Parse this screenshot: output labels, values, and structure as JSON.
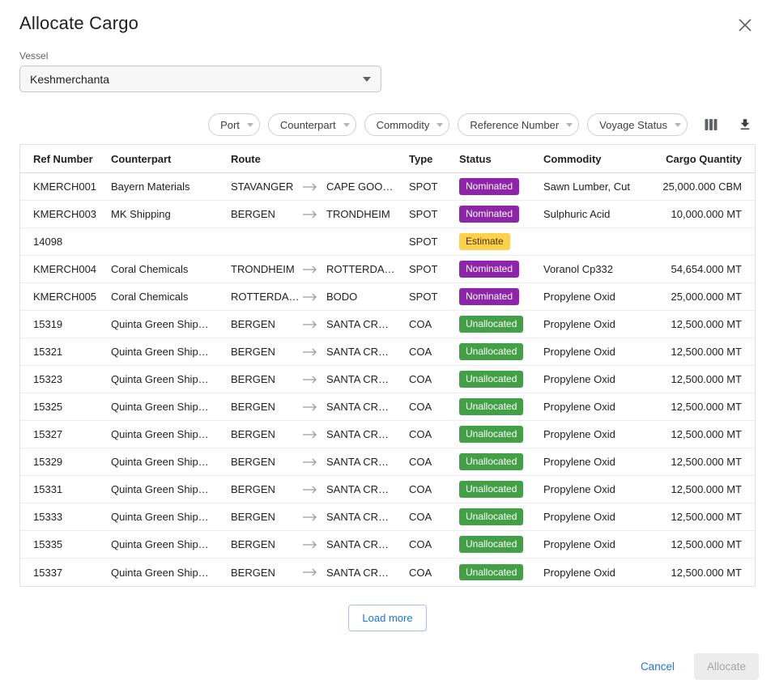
{
  "dialog": {
    "title": "Allocate Cargo"
  },
  "vessel": {
    "label": "Vessel",
    "value": "Keshmerchanta"
  },
  "filters": {
    "chips": [
      "Port",
      "Counterpart",
      "Commodity",
      "Reference Number",
      "Voyage Status"
    ]
  },
  "table": {
    "headers": {
      "ref": "Ref Number",
      "counterpart": "Counterpart",
      "route": "Route",
      "type": "Type",
      "status": "Status",
      "commodity": "Commodity",
      "qty": "Cargo Quantity"
    },
    "rows": [
      {
        "ref": "KMERCH001",
        "counterpart": "Bayern Materials",
        "route_from": "STAVANGER",
        "route_to": "CAPE GOO…",
        "type": "SPOT",
        "status": "Nominated",
        "commodity": "Sawn Lumber, Cut",
        "qty": "25,000.000 CBM"
      },
      {
        "ref": "KMERCH003",
        "counterpart": "MK Shipping",
        "route_from": "BERGEN",
        "route_to": "TRONDHEIM",
        "type": "SPOT",
        "status": "Nominated",
        "commodity": "Sulphuric Acid",
        "qty": "10,000.000 MT"
      },
      {
        "ref": "14098",
        "counterpart": "",
        "route_from": "",
        "route_to": "",
        "type": "SPOT",
        "status": "Estimate",
        "commodity": "",
        "qty": ""
      },
      {
        "ref": "KMERCH004",
        "counterpart": "Coral Chemicals",
        "route_from": "TRONDHEIM",
        "route_to": "ROTTERDA…",
        "type": "SPOT",
        "status": "Nominated",
        "commodity": "Voranol Cp332",
        "qty": "54,654.000 MT"
      },
      {
        "ref": "KMERCH005",
        "counterpart": "Coral Chemicals",
        "route_from": "ROTTERDA…",
        "route_to": "BODO",
        "type": "SPOT",
        "status": "Nominated",
        "commodity": "Propylene Oxid",
        "qty": "25,000.000 MT"
      },
      {
        "ref": "15319",
        "counterpart": "Quinta Green Ship…",
        "route_from": "BERGEN",
        "route_to": "SANTA CR…",
        "type": "COA",
        "status": "Unallocated",
        "commodity": "Propylene Oxid",
        "qty": "12,500.000 MT"
      },
      {
        "ref": "15321",
        "counterpart": "Quinta Green Ship…",
        "route_from": "BERGEN",
        "route_to": "SANTA CR…",
        "type": "COA",
        "status": "Unallocated",
        "commodity": "Propylene Oxid",
        "qty": "12,500.000 MT"
      },
      {
        "ref": "15323",
        "counterpart": "Quinta Green Ship…",
        "route_from": "BERGEN",
        "route_to": "SANTA CR…",
        "type": "COA",
        "status": "Unallocated",
        "commodity": "Propylene Oxid",
        "qty": "12,500.000 MT"
      },
      {
        "ref": "15325",
        "counterpart": "Quinta Green Ship…",
        "route_from": "BERGEN",
        "route_to": "SANTA CR…",
        "type": "COA",
        "status": "Unallocated",
        "commodity": "Propylene Oxid",
        "qty": "12,500.000 MT"
      },
      {
        "ref": "15327",
        "counterpart": "Quinta Green Ship…",
        "route_from": "BERGEN",
        "route_to": "SANTA CR…",
        "type": "COA",
        "status": "Unallocated",
        "commodity": "Propylene Oxid",
        "qty": "12,500.000 MT"
      },
      {
        "ref": "15329",
        "counterpart": "Quinta Green Ship…",
        "route_from": "BERGEN",
        "route_to": "SANTA CR…",
        "type": "COA",
        "status": "Unallocated",
        "commodity": "Propylene Oxid",
        "qty": "12,500.000 MT"
      },
      {
        "ref": "15331",
        "counterpart": "Quinta Green Ship…",
        "route_from": "BERGEN",
        "route_to": "SANTA CR…",
        "type": "COA",
        "status": "Unallocated",
        "commodity": "Propylene Oxid",
        "qty": "12,500.000 MT"
      },
      {
        "ref": "15333",
        "counterpart": "Quinta Green Ship…",
        "route_from": "BERGEN",
        "route_to": "SANTA CR…",
        "type": "COA",
        "status": "Unallocated",
        "commodity": "Propylene Oxid",
        "qty": "12,500.000 MT"
      },
      {
        "ref": "15335",
        "counterpart": "Quinta Green Ship…",
        "route_from": "BERGEN",
        "route_to": "SANTA CR…",
        "type": "COA",
        "status": "Unallocated",
        "commodity": "Propylene Oxid",
        "qty": "12,500.000 MT"
      },
      {
        "ref": "15337",
        "counterpart": "Quinta Green Ship…",
        "route_from": "BERGEN",
        "route_to": "SANTA CR…",
        "type": "COA",
        "status": "Unallocated",
        "commodity": "Propylene Oxid",
        "qty": "12,500.000 MT"
      }
    ]
  },
  "status_styles": {
    "Nominated": {
      "bg": "#8e24aa",
      "fg": "#ffffff"
    },
    "Estimate": {
      "bg": "#fdd14a",
      "fg": "#4a3200"
    },
    "Unallocated": {
      "bg": "#43a047",
      "fg": "#ffffff"
    }
  },
  "load_more_label": "Load more",
  "footer": {
    "cancel": "Cancel",
    "allocate": "Allocate"
  }
}
